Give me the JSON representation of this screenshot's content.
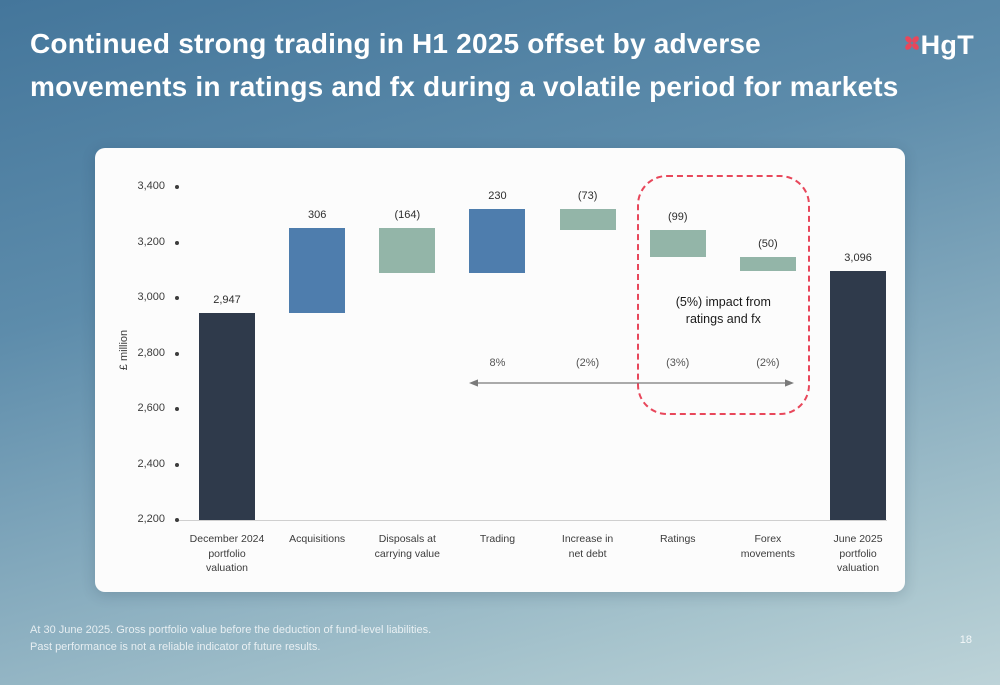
{
  "slide": {
    "title_line1": "Continued strong trading in H1 2025 offset by adverse",
    "title_line2": "movements in ratings and fx during a volatile period for markets",
    "logo_text": "HgT",
    "page_number": "18",
    "footnote_line1": "At 30 June 2025. Gross portfolio value before the deduction of fund-level liabilities.",
    "footnote_line2": "Past performance is not a reliable indicator of future results."
  },
  "colors": {
    "background_top": "#44769b",
    "background_bottom": "#bdd3d8",
    "card": "#fcfcfc",
    "dark_bar": "#2f3a4b",
    "increase_bar": "#4e7dad",
    "decrease_bar": "#93b5a8",
    "highlight_outline": "#e8475b",
    "logo_icon": "#e8475b",
    "title_text": "#ffffff"
  },
  "chart_data": {
    "type": "bar",
    "subtype": "waterfall",
    "title": "",
    "ylabel": "£ million",
    "ylim": [
      2200,
      3400
    ],
    "ytick_step": 200,
    "yticks": [
      "3,400",
      "3,200",
      "3,000",
      "2,800",
      "2,600",
      "2,400",
      "2,200"
    ],
    "bars": [
      {
        "category": "December 2024\nportfolio\nvaluation",
        "display": "2,947",
        "value": 2947,
        "kind": "total",
        "start": 2200,
        "end": 2947
      },
      {
        "category": "Acquisitions",
        "display": "306",
        "value": 306,
        "kind": "increase",
        "start": 2947,
        "end": 3253
      },
      {
        "category": "Disposals at\ncarrying value",
        "display": "(164)",
        "value": -164,
        "kind": "decrease",
        "start": 3253,
        "end": 3089
      },
      {
        "category": "Trading",
        "display": "230",
        "value": 230,
        "kind": "increase",
        "start": 3089,
        "end": 3319
      },
      {
        "category": "Increase in\nnet debt",
        "display": "(73)",
        "value": -73,
        "kind": "decrease",
        "start": 3319,
        "end": 3246
      },
      {
        "category": "Ratings",
        "display": "(99)",
        "value": -99,
        "kind": "decrease",
        "start": 3246,
        "end": 3147
      },
      {
        "category": "Forex\nmovements",
        "display": "(50)",
        "value": -50,
        "kind": "decrease",
        "start": 3147,
        "end": 3097
      },
      {
        "category": "June 2025\nportfolio\nvaluation",
        "display": "3,096",
        "value": 3096,
        "kind": "total",
        "start": 2200,
        "end": 3096
      }
    ],
    "pct_labels": [
      {
        "index": 3,
        "text": "8%"
      },
      {
        "index": 4,
        "text": "(2%)"
      },
      {
        "index": 5,
        "text": "(3%)"
      },
      {
        "index": 6,
        "text": "(2%)"
      }
    ],
    "pct_arrow": {
      "from_index": 3,
      "to_index": 6
    },
    "annotation": {
      "from_index": 5,
      "to_index": 6,
      "line1": "(5%) impact from",
      "line2": "ratings and fx"
    }
  }
}
